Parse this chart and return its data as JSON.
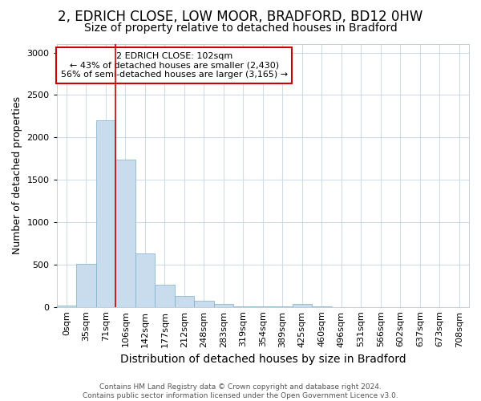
{
  "title": "2, EDRICH CLOSE, LOW MOOR, BRADFORD, BD12 0HW",
  "subtitle": "Size of property relative to detached houses in Bradford",
  "xlabel": "Distribution of detached houses by size in Bradford",
  "ylabel": "Number of detached properties",
  "bar_color": "#c8dcee",
  "bar_edge_color": "#7aaecb",
  "background_color": "#ffffff",
  "axes_background": "#ffffff",
  "grid_color": "#d0dce8",
  "categories": [
    "0sqm",
    "35sqm",
    "71sqm",
    "106sqm",
    "142sqm",
    "177sqm",
    "212sqm",
    "248sqm",
    "283sqm",
    "319sqm",
    "354sqm",
    "389sqm",
    "425sqm",
    "460sqm",
    "496sqm",
    "531sqm",
    "566sqm",
    "602sqm",
    "637sqm",
    "673sqm",
    "708sqm"
  ],
  "values": [
    20,
    510,
    2200,
    1740,
    635,
    260,
    130,
    70,
    35,
    10,
    5,
    3,
    35,
    2,
    1,
    1,
    1,
    1,
    1,
    1,
    1
  ],
  "ylim": [
    0,
    3100
  ],
  "yticks": [
    0,
    500,
    1000,
    1500,
    2000,
    2500,
    3000
  ],
  "marker_bin_index": 2.5,
  "marker_color": "#cc0000",
  "annotation_text": "2 EDRICH CLOSE: 102sqm\n← 43% of detached houses are smaller (2,430)\n56% of semi-detached houses are larger (3,165) →",
  "annotation_box_color": "#ffffff",
  "annotation_box_edge": "#cc0000",
  "footer_text": "Contains HM Land Registry data © Crown copyright and database right 2024.\nContains public sector information licensed under the Open Government Licence v3.0.",
  "title_fontsize": 12,
  "subtitle_fontsize": 10,
  "tick_fontsize": 8,
  "ylabel_fontsize": 9,
  "xlabel_fontsize": 10
}
